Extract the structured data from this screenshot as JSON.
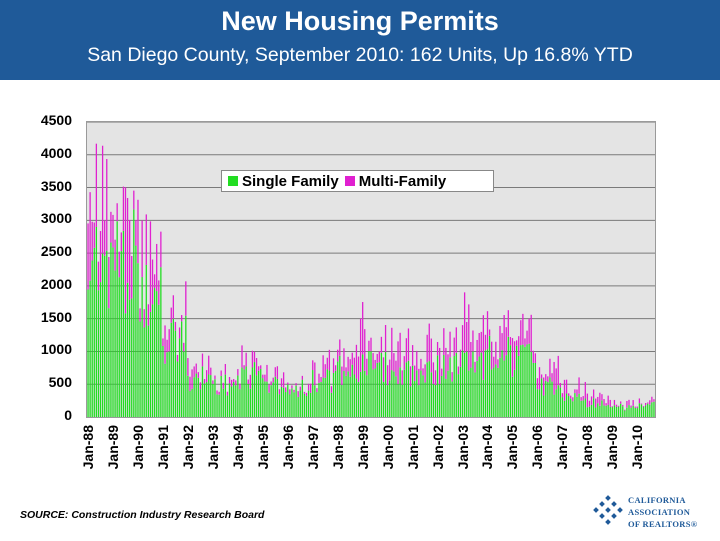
{
  "header": {
    "title": "New Housing Permits",
    "subtitle": "San Diego County, September 2010: 162 Units, Up 16.8% YTD"
  },
  "source": "SOURCE: Construction Industry Research Board",
  "logo": {
    "line1": "CALIFORNIA",
    "line2": "ASSOCIATION",
    "line3": "OF REALTORS",
    "registered_mark": "®",
    "color": "#1f5a99"
  },
  "colors": {
    "header_bg": "#1f5a99",
    "single_family": "#22dd22",
    "multi_family": "#e020d0",
    "plot_bg": "#e4e4e4"
  },
  "chart_data": {
    "type": "bar",
    "stacked": true,
    "title": "",
    "xlabel": "",
    "ylabel": "",
    "ylim": [
      0,
      4500
    ],
    "yticks": [
      0,
      500,
      1000,
      1500,
      2000,
      2500,
      3000,
      3500,
      4000,
      4500
    ],
    "grid": true,
    "legend_position": "top-center",
    "xtick_labels": [
      "Jan-88",
      "Jan-89",
      "Jan-90",
      "Jan-91",
      "Jan-92",
      "Jan-93",
      "Jan-94",
      "Jan-95",
      "Jan-96",
      "Jan-97",
      "Jan-98",
      "Jan-99",
      "Jan-00",
      "Jan-01",
      "Jan-02",
      "Jan-03",
      "Jan-04",
      "Jan-05",
      "Jan-06",
      "Jan-07",
      "Jan-08",
      "Jan-09",
      "Jan-10"
    ],
    "period": "monthly, Jan-88 to Sep-10",
    "series": [
      {
        "name": "Single Family",
        "color": "#22dd22",
        "yearly_monthly_averages": [
          2500,
          2400,
          1800,
          1200,
          600,
          500,
          650,
          500,
          450,
          550,
          750,
          750,
          700,
          700,
          750,
          850,
          950,
          850,
          450,
          300,
          220,
          150,
          180
        ]
      },
      {
        "name": "Multi-Family",
        "color": "#e020d0",
        "yearly_monthly_averages": [
          1500,
          1200,
          900,
          400,
          300,
          200,
          250,
          250,
          150,
          250,
          450,
          500,
          450,
          450,
          450,
          550,
          450,
          400,
          300,
          200,
          150,
          60,
          60
        ]
      }
    ],
    "peaks_clipped_at_max": [
      "Jan-88",
      "Jan-89",
      "Jan-90",
      "Jan-91"
    ],
    "latest_value": {
      "month": "September 2010",
      "units": 162
    }
  }
}
